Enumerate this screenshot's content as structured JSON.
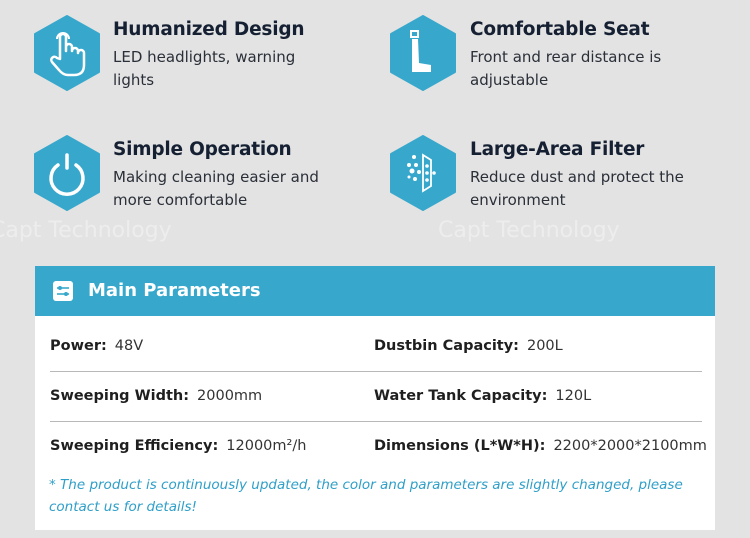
{
  "features": [
    {
      "title": "Humanized Design",
      "desc": "LED  headlights,  warning lights",
      "icon": "pointing-hand-icon"
    },
    {
      "title": "Comfortable Seat",
      "desc": "Front and rear distance is adjustable",
      "icon": "seat-icon"
    },
    {
      "title": "Simple Operation",
      "desc": "Making cleaning easier and more comfortable",
      "icon": "power-icon"
    },
    {
      "title": "Large-Area Filter",
      "desc": "Reduce dust and protect the environment",
      "icon": "filter-icon"
    }
  ],
  "watermark": "Capt  Technology",
  "parameters": {
    "title": "Main Parameters",
    "icon": "sliders-icon",
    "rows": [
      [
        {
          "label": "Power:",
          "value": "48V"
        },
        {
          "label": "Dustbin Capacity:",
          "value": "200L"
        }
      ],
      [
        {
          "label": "Sweeping Width:",
          "value": "2000mm"
        },
        {
          "label": "Water Tank Capacity:",
          "value": "120L"
        }
      ],
      [
        {
          "label": "Sweeping Efficiency:",
          "value": "12000m²/h"
        },
        {
          "label": "Dimensions (L*W*H):",
          "value": "2200*2000*2100mm"
        }
      ]
    ],
    "note": "* The product is continuously updated, the color and parameters are slightly changed, please contact us for details!"
  },
  "colors": {
    "accent": "#37a8cc",
    "background": "#e3e3e3",
    "note": "#2f9fc8"
  }
}
